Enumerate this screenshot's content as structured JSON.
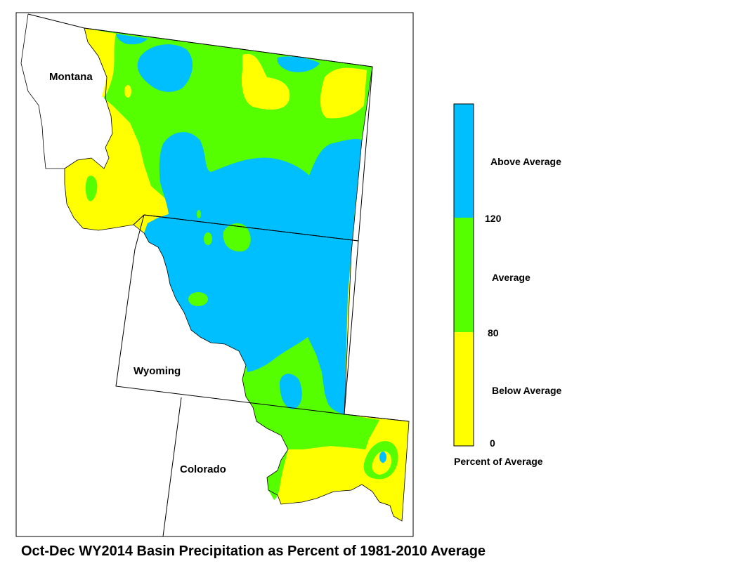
{
  "title": "Oct-Dec WY2014 Basin Precipitation as Percent of 1981-2010 Average",
  "states": [
    {
      "name": "Montana"
    },
    {
      "name": "Wyoming"
    },
    {
      "name": "Colorado"
    }
  ],
  "legend": {
    "title": "Percent of Average",
    "classes": [
      {
        "label": "Above Average",
        "color": "#00bfff"
      },
      {
        "label": "Average",
        "color": "#55ff00"
      },
      {
        "label": "Below Average",
        "color": "#ffff00"
      }
    ],
    "breaks": [
      "120",
      "80",
      "0"
    ]
  },
  "colors": {
    "above": "#00bfff",
    "average": "#55ff00",
    "below": "#ffff00",
    "outline": "#000000"
  }
}
